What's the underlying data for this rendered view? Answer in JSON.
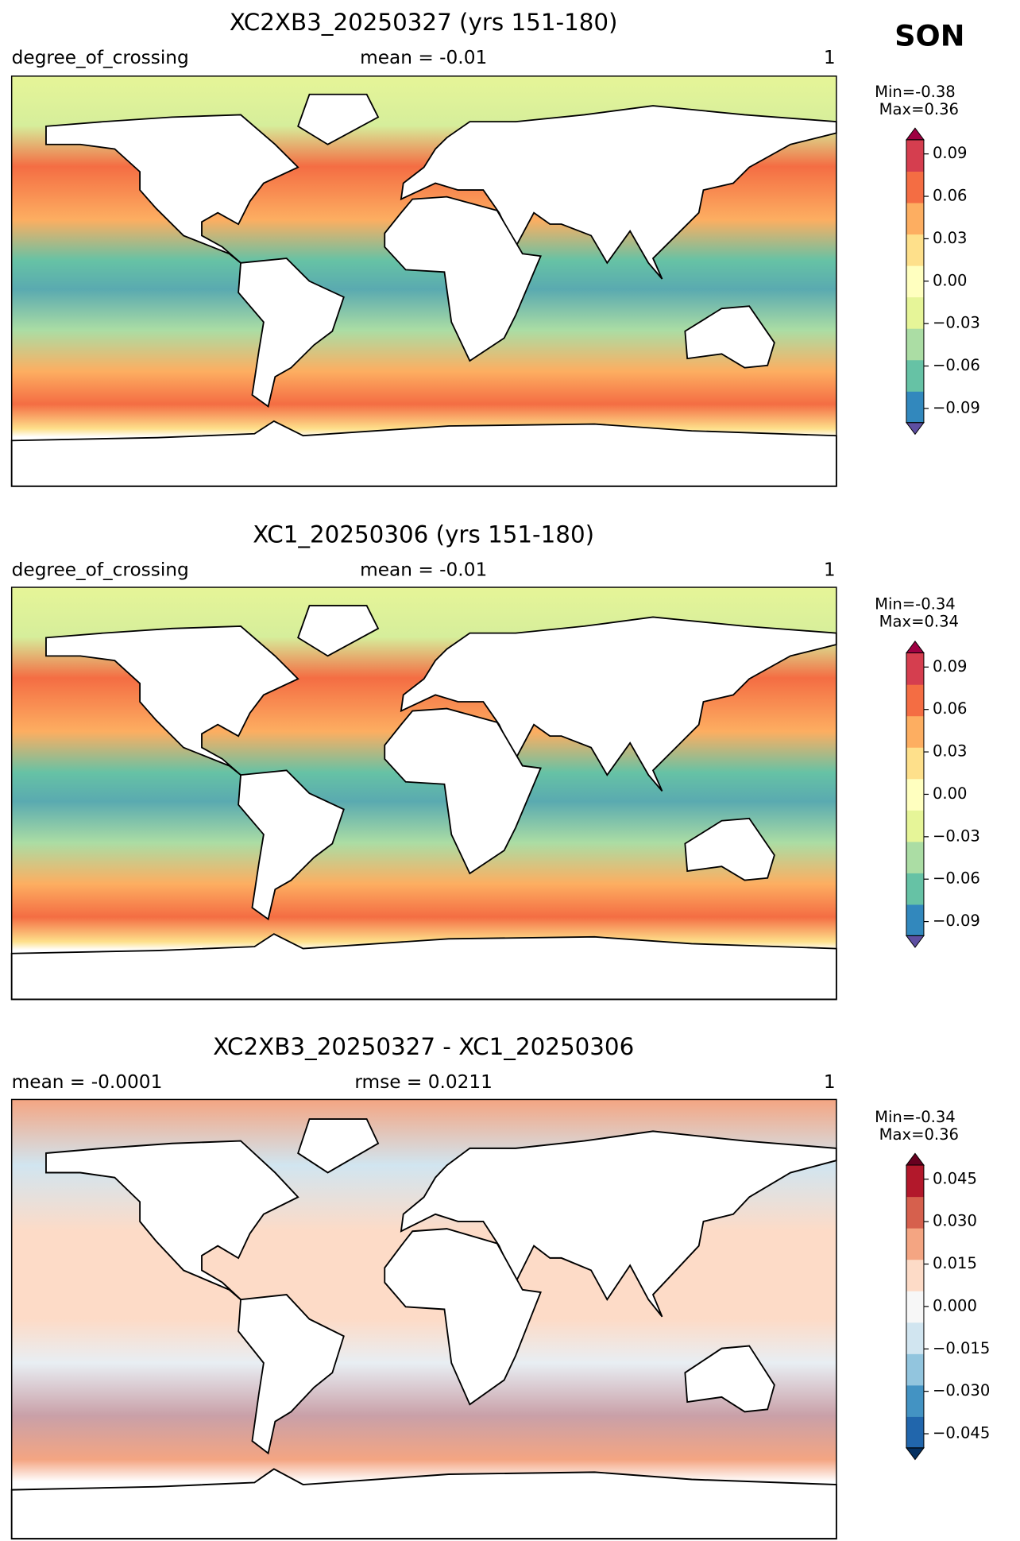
{
  "season": "SON",
  "panels": [
    {
      "title": "XC2XB3_20250327 (yrs 151-180)",
      "left_label": "degree_of_crossing",
      "center_label": "mean = -0.01",
      "right_label": "1",
      "min_label": "Min=-0.38",
      "max_label": "Max=0.36",
      "colorbar": {
        "lim": [
          -0.1,
          0.1
        ],
        "colors": [
          "#5e4fa2",
          "#3288bd",
          "#66c2a5",
          "#abdda4",
          "#e6f598",
          "#ffffbf",
          "#fee08b",
          "#fdae61",
          "#f46d43",
          "#d53e4f",
          "#9e0142"
        ],
        "ticks": [
          0.09,
          0.06,
          0.03,
          {
            "value": 0,
            "label": "0.00"
          },
          {
            "value": -0.03,
            "label": "−0.03"
          },
          {
            "value": -0.06,
            "label": "−0.06"
          },
          {
            "value": -0.09,
            "label": "−0.09"
          }
        ]
      }
    },
    {
      "title": "XC1_20250306 (yrs 151-180)",
      "left_label": "degree_of_crossing",
      "center_label": "mean = -0.01",
      "right_label": "1",
      "min_label": "Min=-0.34",
      "max_label": "Max=0.34",
      "colorbar": {
        "lim": [
          -0.1,
          0.1
        ],
        "colors": [
          "#5e4fa2",
          "#3288bd",
          "#66c2a5",
          "#abdda4",
          "#e6f598",
          "#ffffbf",
          "#fee08b",
          "#fdae61",
          "#f46d43",
          "#d53e4f",
          "#9e0142"
        ],
        "ticks": [
          0.09,
          0.06,
          0.03,
          {
            "value": 0,
            "label": "0.00"
          },
          {
            "value": -0.03,
            "label": "−0.03"
          },
          {
            "value": -0.06,
            "label": "−0.06"
          },
          {
            "value": -0.09,
            "label": "−0.09"
          }
        ]
      }
    },
    {
      "title": "XC2XB3_20250327 - XC1_20250306",
      "left_label": "mean = -0.0001",
      "center_label": "rmse = 0.0211",
      "right_label": "1",
      "min_label": "Min=-0.34",
      "max_label": "Max=0.36",
      "colorbar": {
        "lim": [
          -0.05,
          0.05
        ],
        "colors": [
          "#053061",
          "#2166ac",
          "#4393c3",
          "#92c5de",
          "#d1e5f0",
          "#f7f7f7",
          "#fddbc7",
          "#f4a582",
          "#d6604d",
          "#b2182b",
          "#67001f"
        ],
        "ticks": [
          0.045,
          {
            "value": 0.03,
            "label": "0.030"
          },
          0.015,
          {
            "value": 0,
            "label": "0.000"
          },
          {
            "value": -0.015,
            "label": "−0.015"
          },
          {
            "value": -0.03,
            "label": "−0.030"
          },
          {
            "value": -0.045,
            "label": "−0.045"
          }
        ]
      }
    }
  ]
}
